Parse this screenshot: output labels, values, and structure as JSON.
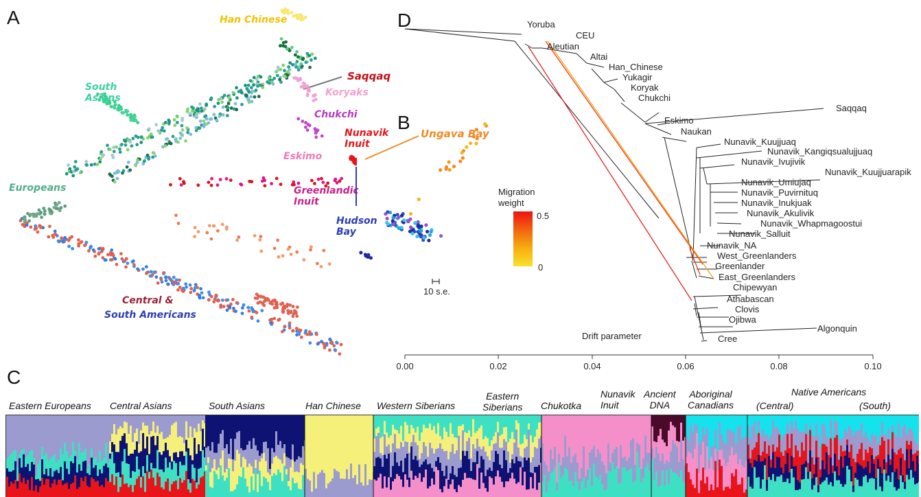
{
  "figure": {
    "panel_a": {
      "letter": "A",
      "labels": {
        "han_chinese": "Han Chinese",
        "saqqaq": "Saqqaq",
        "south_asians": "South\nAsians",
        "koryaks": "Koryaks",
        "chukchi": "Chukchi",
        "nunavik_inuit": "Nunavik\nInuit",
        "eskimo": "Eskimo",
        "greenlandic_inuit": "Greenlandic\nInuit",
        "europeans": "Europeans",
        "central_south_americans_1": "Central &",
        "central_south_americans_2": "South Americans"
      }
    },
    "panel_b": {
      "letter": "B",
      "labels": {
        "ungava_bay": "Ungava Bay",
        "hudson_bay": "Hudson\nBay",
        "scale": "10 s.e."
      },
      "legend": {
        "title": "Migration\nweight",
        "max": "0.5",
        "min": "0"
      }
    },
    "panel_c": {
      "letter": "C",
      "groups": [
        "Eastern Europeans",
        "Central Asians",
        "South Asians",
        "Han Chinese",
        "Western Siberians",
        "Eastern\nSiberians",
        "Chukotka",
        "Nunavik\nInuit",
        "Ancient\nDNA",
        "Aboriginal\nCanadians",
        "Native Americans",
        "(Central)",
        "(South)"
      ],
      "colors": {
        "lavender": "#9b9bcf",
        "yellow": "#f5f07a",
        "navy": "#0d1273",
        "turquoise": "#3ee0c3",
        "pink": "#f58fc9",
        "cyan": "#14e3ee",
        "red": "#e8141a",
        "maroon": "#4a0b2a"
      }
    },
    "panel_d": {
      "letter": "D",
      "axis_label": "Drift parameter",
      "ticks": [
        "0.00",
        "0.02",
        "0.04",
        "0.06",
        "0.08",
        "0.10"
      ],
      "tips": [
        "Yoruba",
        "CEU",
        "Aleutian",
        "Altai",
        "Han_Chinese",
        "Yukagir",
        "Koryak",
        "Chukchi",
        "Saqqaq",
        "Eskimo",
        "Naukan",
        "Nunavik_Kuujjuaq",
        "Nunavik_Kangiqsualujjuaq",
        "Nunavik_Ivujivik",
        "Nunavik_Kuujjuarapik",
        "Nunavik_Umiujaq",
        "Nunavik_Puvirnituq",
        "Nunavik_Inukjuak",
        "Nunavik_Akulivik",
        "Nunavik_Whapmagoostui",
        "Nunavik_Salluit",
        "Nunavik_NA",
        "West_Greenlanders",
        "Greenlander",
        "East_Greenlanders",
        "Chipewyan",
        "Athabascan",
        "Clovis",
        "Ojibwa",
        "Algonquin",
        "Cree"
      ]
    }
  }
}
